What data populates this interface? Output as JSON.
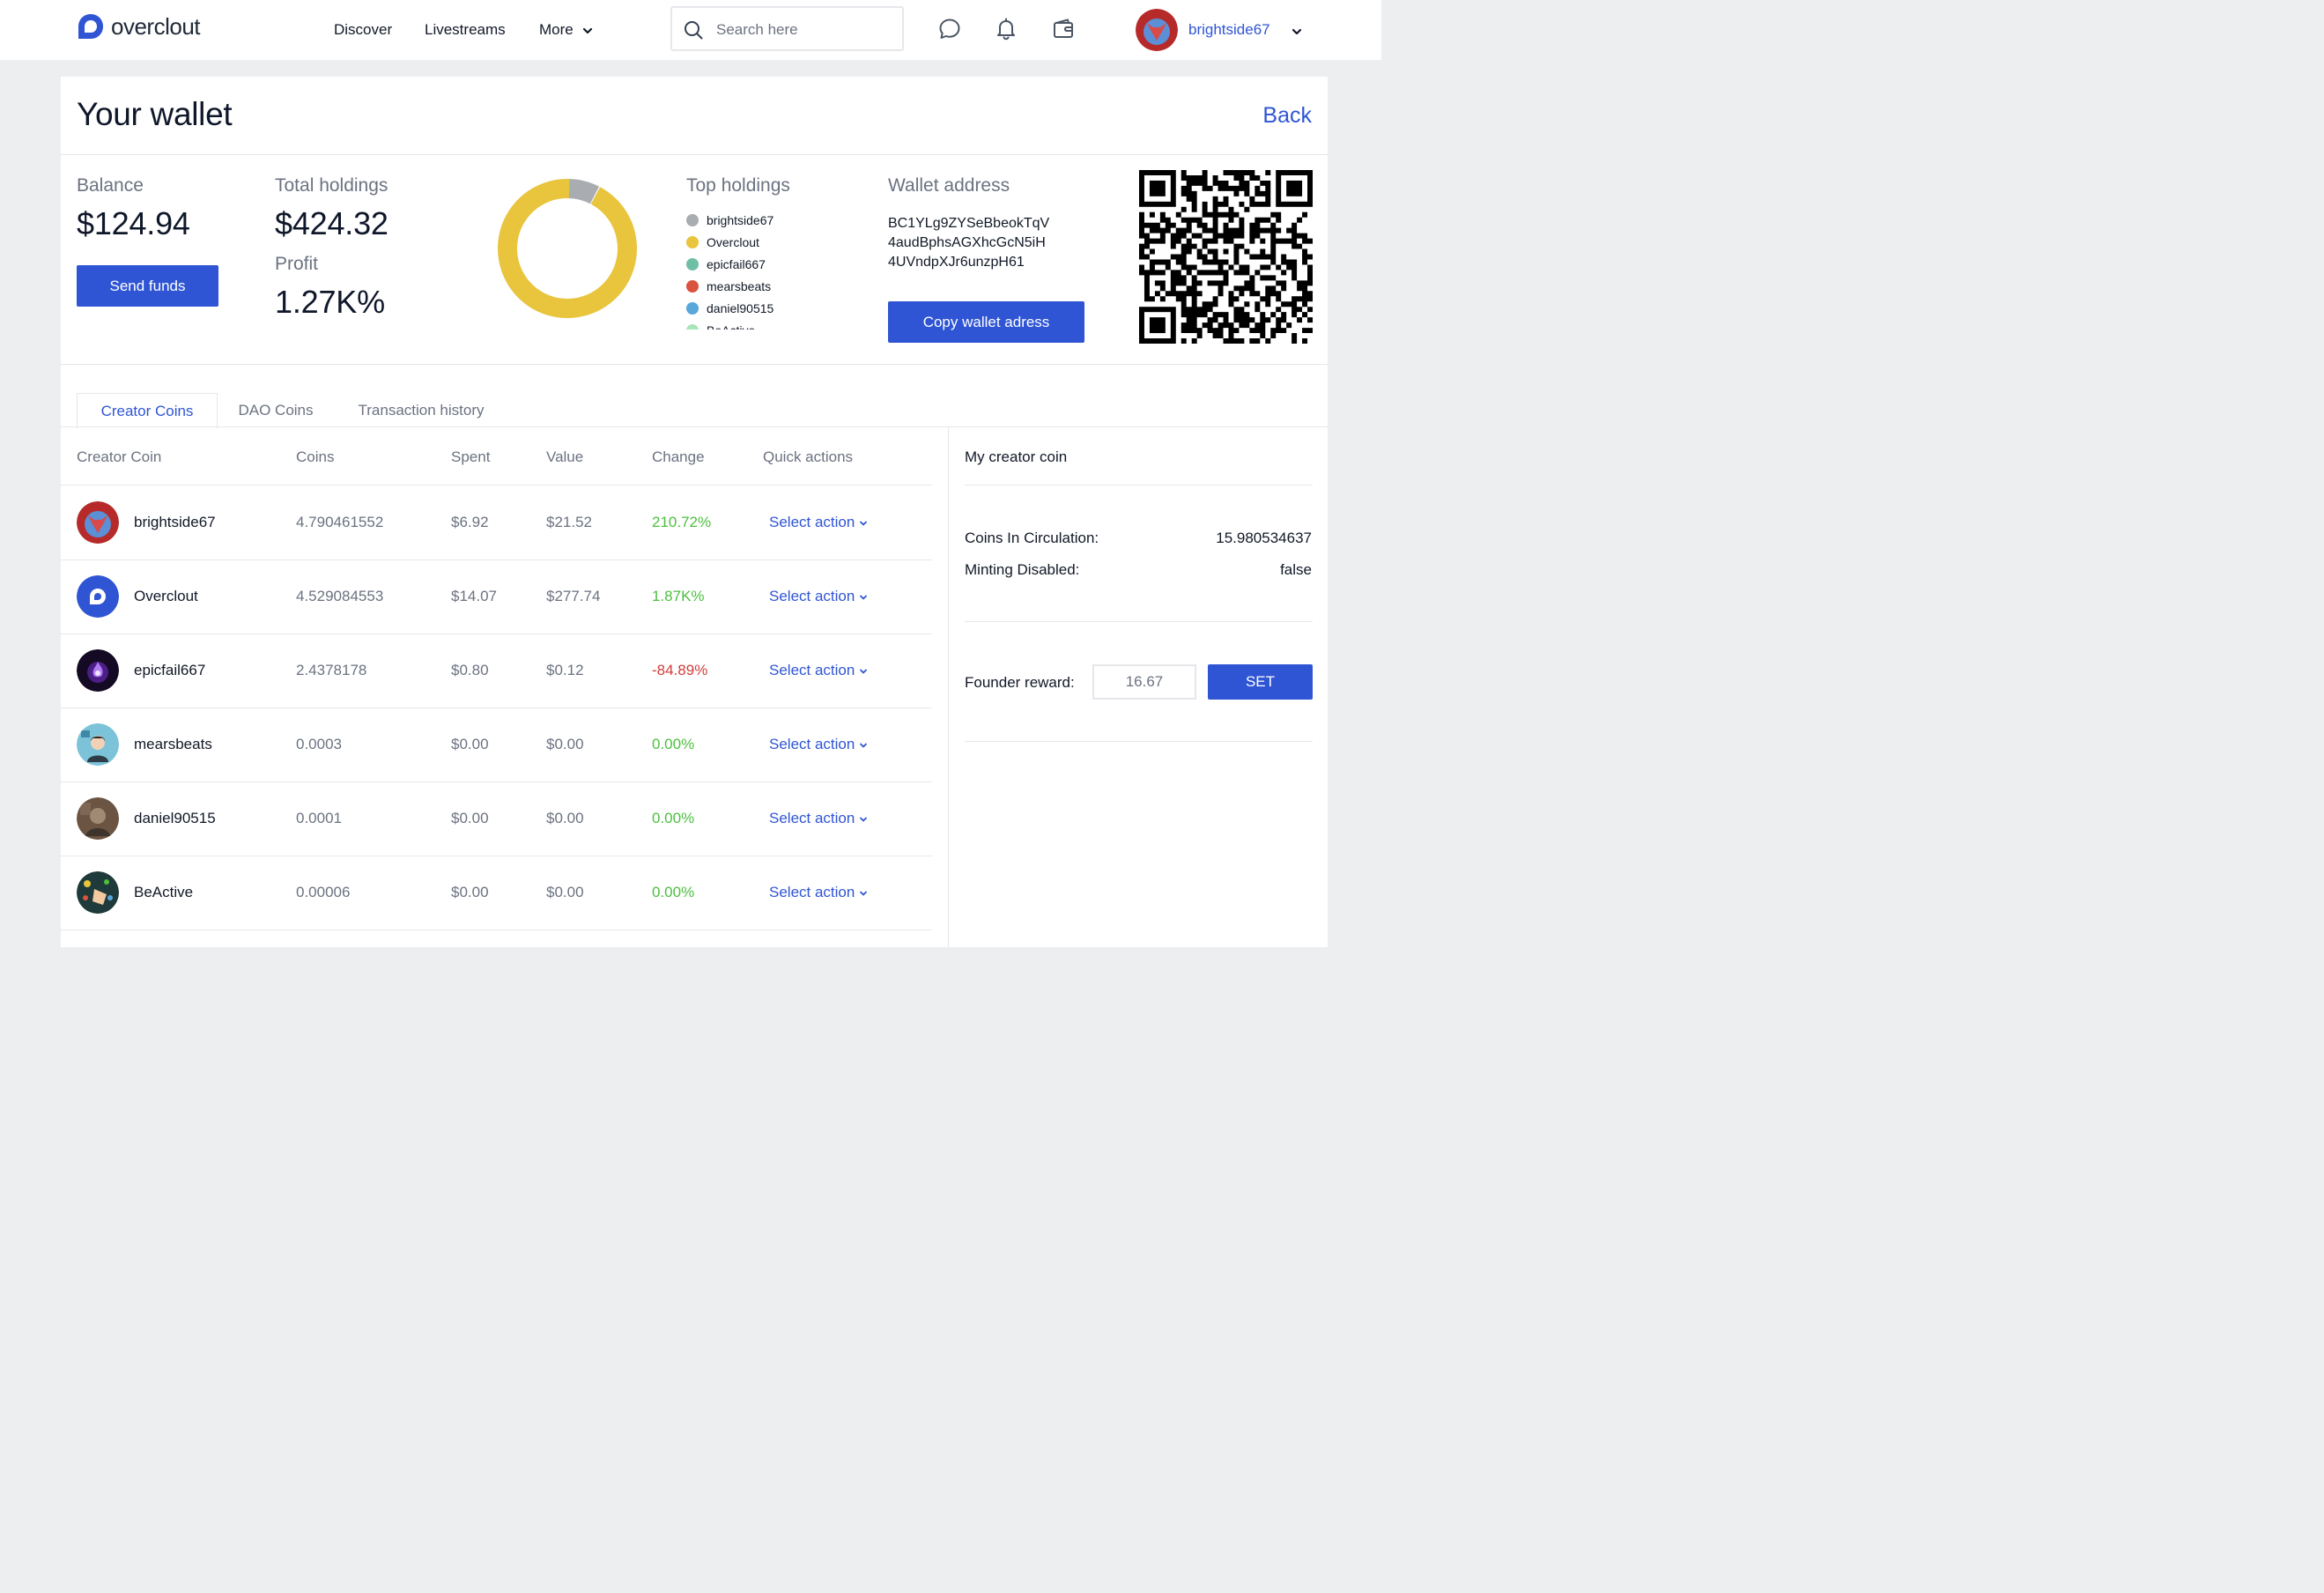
{
  "brand": {
    "name": "overclout",
    "color": "#2f55d4"
  },
  "nav": {
    "links": [
      "Discover",
      "Livestreams",
      "More"
    ],
    "search_placeholder": "Search here",
    "username": "brightside67"
  },
  "page": {
    "title": "Your wallet",
    "back_label": "Back"
  },
  "balance": {
    "label": "Balance",
    "value": "$124.94",
    "send_label": "Send funds"
  },
  "holdings": {
    "label": "Total holdings",
    "value": "$424.32",
    "profit_label": "Profit",
    "profit_value": "1.27K%"
  },
  "top_holdings": {
    "label": "Top holdings",
    "items": [
      {
        "name": "brightside67",
        "color": "#a9adb1",
        "share": 5.1
      },
      {
        "name": "Overclout",
        "color": "#e9c43d",
        "share": 65.5
      },
      {
        "name": "epicfail667",
        "color": "#6fbfa6",
        "share": 0.03
      },
      {
        "name": "mearsbeats",
        "color": "#d9533f",
        "share": 0.0
      },
      {
        "name": "daniel90515",
        "color": "#5aa7db",
        "share": 0.0
      },
      {
        "name": "BeActive",
        "color": "#a8e6b9",
        "share": 0.0
      }
    ]
  },
  "wallet": {
    "label": "Wallet address",
    "address_lines": [
      "BC1YLg9ZYSeBbeokTqV",
      "4audBphsAGXhcGcN5iH",
      "4UVndpXJr6unzpH61"
    ],
    "copy_label": "Copy wallet adress"
  },
  "tabs": [
    "Creator Coins",
    "DAO Coins",
    "Transaction history"
  ],
  "table": {
    "headers": [
      "Creator Coin",
      "Coins",
      "Spent",
      "Value",
      "Change",
      "Quick actions"
    ],
    "action_label": "Select action",
    "rows": [
      {
        "name": "brightside67",
        "coins": "4.790461552",
        "spent": "$6.92",
        "value": "$21.52",
        "change": "210.72%",
        "trend": "up"
      },
      {
        "name": "Overclout",
        "coins": "4.529084553",
        "spent": "$14.07",
        "value": "$277.74",
        "change": "1.87K%",
        "trend": "up"
      },
      {
        "name": "epicfail667",
        "coins": "2.4378178",
        "spent": "$0.80",
        "value": "$0.12",
        "change": "-84.89%",
        "trend": "down"
      },
      {
        "name": "mearsbeats",
        "coins": "0.0003",
        "spent": "$0.00",
        "value": "$0.00",
        "change": "0.00%",
        "trend": "up"
      },
      {
        "name": "daniel90515",
        "coins": "0.0001",
        "spent": "$0.00",
        "value": "$0.00",
        "change": "0.00%",
        "trend": "up"
      },
      {
        "name": "BeActive",
        "coins": "0.00006",
        "spent": "$0.00",
        "value": "$0.00",
        "change": "0.00%",
        "trend": "up"
      }
    ]
  },
  "creator_coin": {
    "title": "My creator coin",
    "circulation_label": "Coins In Circulation:",
    "circulation_value": "15.980534637",
    "minting_label": "Minting Disabled:",
    "minting_value": "false",
    "reward_label": "Founder reward:",
    "reward_value": "16.67",
    "set_label": "SET"
  },
  "colors": {
    "positive": "#4cbf3f",
    "negative": "#d13b3b",
    "link": "#2f55d4"
  }
}
